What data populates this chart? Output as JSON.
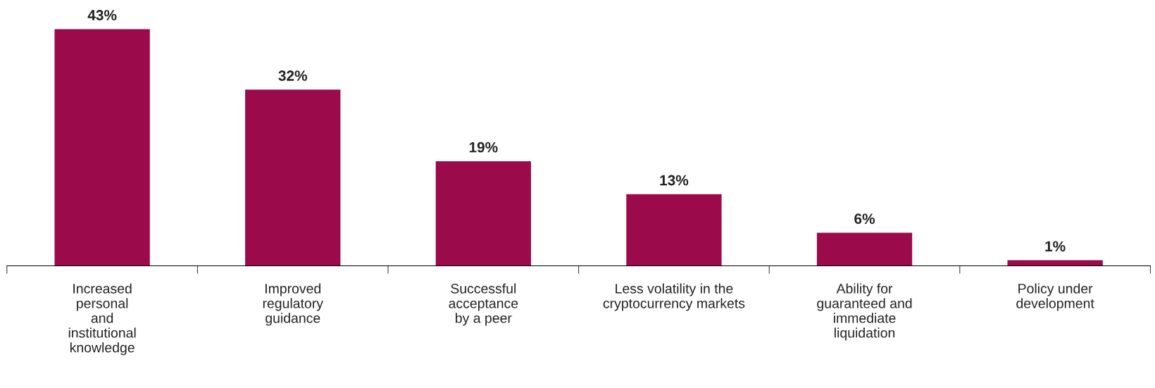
{
  "chart_data": {
    "type": "bar",
    "categories": [
      "Increased\npersonal\nand\ninstitutional\nknowledge",
      "Improved\nregulatory\nguidance",
      "Successful\nacceptance\nby a peer",
      "Less volatility in the\ncryptocurrency markets",
      "Ability for\nguaranteed and\nimmediate\nliquidation",
      "Policy under\ndevelopment"
    ],
    "values": [
      43,
      32,
      19,
      13,
      6,
      1
    ],
    "value_labels": [
      "43%",
      "32%",
      "19%",
      "13%",
      "6%",
      "1%"
    ],
    "color": "#9b0a4b",
    "grid": false,
    "legend": false,
    "tick_labels": "x"
  }
}
